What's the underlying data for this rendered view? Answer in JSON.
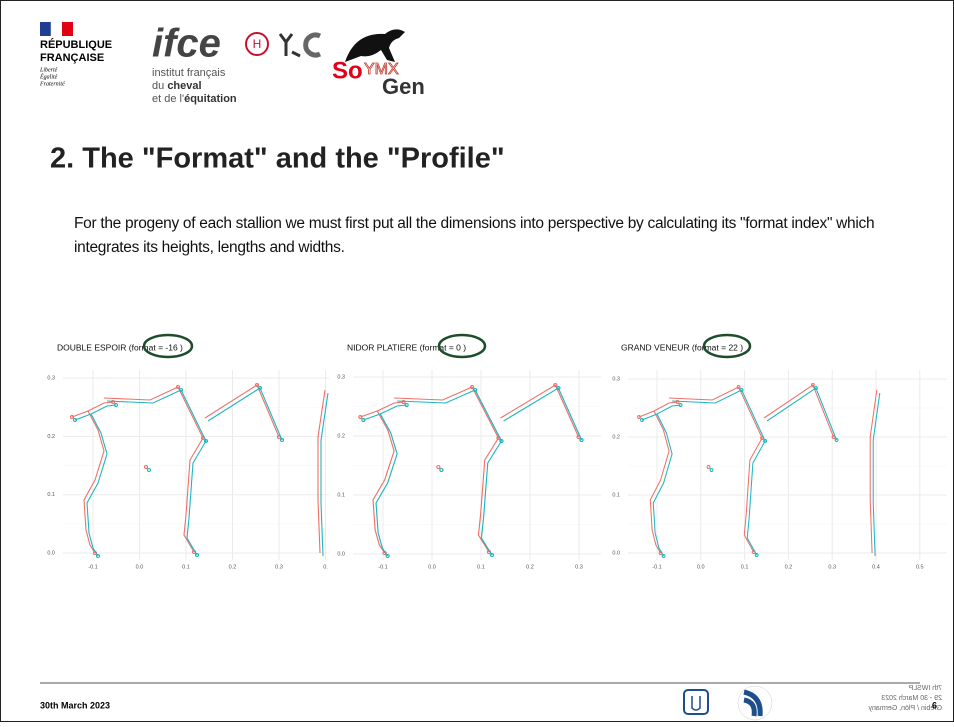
{
  "header": {
    "republique": {
      "lines": [
        "RÉPUBLIQUE",
        "FRANÇAISE"
      ],
      "motto": [
        "Liberté",
        "Égalité",
        "Fraternité"
      ]
    },
    "ifce": {
      "name": "ifce",
      "lines": [
        "institut français",
        "du",
        "cheval",
        "et de l'",
        "équitation"
      ]
    },
    "soymx": {
      "parts": [
        "So",
        "YMX",
        "Gen"
      ]
    }
  },
  "slide": {
    "title": "2. The \"Format\" and the \"Profile\"",
    "paragraph": "For the progeny of each stallion we must first put all the dimensions into perspective by calculating its \"format index\" which integrates its heights, lengths and widths.",
    "panels": [
      {
        "title": "DOUBLE ESPOIR (format = -16 )",
        "xticks": [
          "-0.1",
          "0.0",
          "0.1",
          "0.2",
          "0.3",
          "0."
        ],
        "yticks": [
          "0.0",
          "0.1",
          "0.2",
          "0.3"
        ]
      },
      {
        "title": "NIDOR PLATIERE (format = 0 )",
        "xticks": [
          "-0.1",
          "0.0",
          "0.1",
          "0.2",
          "0.3"
        ],
        "yticks": [
          "0.0",
          "0.1",
          "0.2",
          "0.3"
        ]
      },
      {
        "title": "GRAND VENEUR (format = 22 )",
        "xticks": [
          "-0.1",
          "0.0",
          "0.1",
          "0.2",
          "0.3",
          "0.4",
          "0.5"
        ],
        "yticks": [
          "0.0",
          "0.1",
          "0.2",
          "0.3"
        ]
      }
    ]
  },
  "footer": {
    "date": "30th March 2023",
    "conference": [
      "7th IWSLP",
      "29 - 30 March 2023",
      "Grebin / Plön, Germany"
    ],
    "page": "6"
  }
}
